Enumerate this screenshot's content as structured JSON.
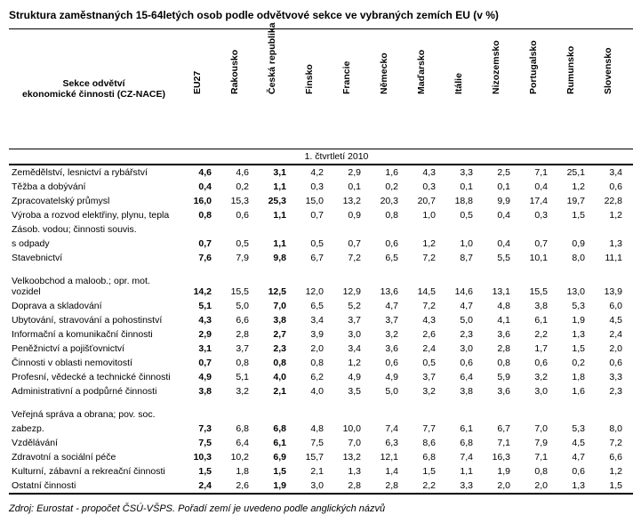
{
  "title": "Struktura zaměstnaných 15-64letých osob podle odvětvové sekce ve vybraných zemích EU (v %)",
  "rowHeaderLabel": "Sekce odvětví\nekonomické činnosti (CZ-NACE)",
  "columns": [
    "EU27",
    "Rakousko",
    "Česká republika",
    "Finsko",
    "Francie",
    "Německo",
    "Maďarsko",
    "Itálie",
    "Nizozemsko",
    "Portugalsko",
    "Rumunsko",
    "Slovensko",
    "Spojené království"
  ],
  "boldColumns": [
    0,
    2
  ],
  "periodLabel": "1. čtvrtletí 2010",
  "groups": [
    {
      "rows": [
        {
          "label": "Zemědělství, lesnictví a rybářství",
          "v": [
            "4,6",
            "4,6",
            "3,1",
            "4,2",
            "2,9",
            "1,6",
            "4,3",
            "3,3",
            "2,5",
            "7,1",
            "25,1",
            "3,4",
            "1,0"
          ]
        },
        {
          "label": "Těžba a dobývání",
          "v": [
            "0,4",
            "0,2",
            "1,1",
            "0,3",
            "0,1",
            "0,2",
            "0,3",
            "0,1",
            "0,1",
            "0,4",
            "1,2",
            "0,6",
            "0,4"
          ]
        },
        {
          "label": "Zpracovatelský průmysl",
          "v": [
            "16,0",
            "15,3",
            "25,3",
            "15,0",
            "13,2",
            "20,3",
            "20,7",
            "18,8",
            "9,9",
            "17,4",
            "19,7",
            "22,8",
            "9,8"
          ]
        },
        {
          "label": "Výroba a rozvod elektřiny, plynu, tepla",
          "v": [
            "0,8",
            "0,6",
            "1,1",
            "0,7",
            "0,9",
            "0,8",
            "1,0",
            "0,5",
            "0,4",
            "0,3",
            "1,5",
            "1,2",
            "0,6"
          ]
        },
        {
          "label": "Zásob. vodou; činnosti souvis. s odpady",
          "v": [
            "0,7",
            "0,5",
            "1,1",
            "0,5",
            "0,7",
            "0,6",
            "1,2",
            "1,0",
            "0,4",
            "0,7",
            "0,9",
            "1,3",
            "0,7"
          ],
          "split": true,
          "l1": "Zásob. vodou; činnosti souvis.",
          "l2": "s odpady"
        },
        {
          "label": "Stavebnictví",
          "v": [
            "7,6",
            "7,9",
            "9,8",
            "6,7",
            "7,2",
            "6,5",
            "7,2",
            "8,7",
            "5,5",
            "10,1",
            "8,0",
            "11,1",
            "7,7"
          ]
        }
      ]
    },
    {
      "rows": [
        {
          "label": "Velkoobchod a maloob.; opr. mot. vozidel",
          "v": [
            "14,2",
            "15,5",
            "12,5",
            "12,0",
            "12,9",
            "13,6",
            "14,5",
            "14,6",
            "13,1",
            "15,5",
            "13,0",
            "13,9",
            "13,6"
          ]
        },
        {
          "label": "Doprava a skladování",
          "v": [
            "5,1",
            "5,0",
            "7,0",
            "6,5",
            "5,2",
            "4,7",
            "7,2",
            "4,7",
            "4,8",
            "3,8",
            "5,3",
            "6,0",
            "5,0"
          ]
        },
        {
          "label": "Ubytování, stravování a pohostinství",
          "v": [
            "4,3",
            "6,6",
            "3,8",
            "3,4",
            "3,7",
            "3,7",
            "4,3",
            "5,0",
            "4,1",
            "6,1",
            "1,9",
            "4,5",
            "4,8"
          ]
        },
        {
          "label": "Informační a komunikační činnosti",
          "v": [
            "2,9",
            "2,8",
            "2,7",
            "3,9",
            "3,0",
            "3,2",
            "2,6",
            "2,3",
            "3,6",
            "2,2",
            "1,3",
            "2,4",
            "3,5"
          ]
        },
        {
          "label": "Peněžnictví a pojišťovnictví",
          "v": [
            "3,1",
            "3,7",
            "2,3",
            "2,0",
            "3,4",
            "3,6",
            "2,4",
            "3,0",
            "2,8",
            "1,7",
            "1,5",
            "2,0",
            "4,2"
          ]
        },
        {
          "label": "Činnosti v oblasti nemovitostí",
          "v": [
            "0,7",
            "0,8",
            "0,8",
            "0,8",
            "1,2",
            "0,6",
            "0,5",
            "0,6",
            "0,8",
            "0,6",
            "0,2",
            "0,6",
            "0,9"
          ]
        },
        {
          "label": "Profesní, vědecké a technické činnosti",
          "v": [
            "4,9",
            "5,1",
            "4,0",
            "6,2",
            "4,9",
            "4,9",
            "3,7",
            "6,4",
            "5,9",
            "3,2",
            "1,8",
            "3,3",
            "6,4"
          ]
        },
        {
          "label": "Administrativní a podpůrné činnosti",
          "v": [
            "3,8",
            "3,2",
            "2,1",
            "4,0",
            "3,5",
            "5,0",
            "3,2",
            "3,8",
            "3,6",
            "3,0",
            "1,6",
            "2,3",
            "4,5"
          ]
        }
      ]
    },
    {
      "rows": [
        {
          "label": "Veřejná správa a obrana; pov. soc. zabezp.",
          "v": [
            "7,3",
            "6,8",
            "6,8",
            "4,8",
            "10,0",
            "7,4",
            "7,7",
            "6,1",
            "6,7",
            "7,0",
            "5,3",
            "8,0",
            "6,8"
          ],
          "split": true,
          "l1": "Veřejná správa a obrana; pov. soc.",
          "l2": "zabezp."
        },
        {
          "label": "Vzdělávání",
          "v": [
            "7,5",
            "6,4",
            "6,1",
            "7,5",
            "7,0",
            "6,3",
            "8,6",
            "6,8",
            "7,1",
            "7,9",
            "4,5",
            "7,2",
            "10,6"
          ]
        },
        {
          "label": "Zdravotní a sociální péče",
          "v": [
            "10,3",
            "10,2",
            "6,9",
            "15,7",
            "13,2",
            "12,1",
            "6,8",
            "7,4",
            "16,3",
            "7,1",
            "4,7",
            "6,6",
            "13,2"
          ]
        },
        {
          "label": "Kulturní, zábavní a rekreační činnosti",
          "v": [
            "1,5",
            "1,8",
            "1,5",
            "2,1",
            "1,3",
            "1,4",
            "1,5",
            "1,1",
            "1,9",
            "0,8",
            "0,6",
            "1,2",
            "2,6"
          ]
        },
        {
          "label": "Ostatní činnosti",
          "v": [
            "2,4",
            "2,6",
            "1,9",
            "3,0",
            "2,8",
            "2,8",
            "2,2",
            "3,3",
            "2,0",
            "2,0",
            "1,3",
            "1,5",
            "2,5"
          ]
        }
      ]
    }
  ],
  "source": "Zdroj: Eurostat - propočet ČSÚ-VŠPS. Pořadí zemí je uvedeno podle anglických názvů"
}
